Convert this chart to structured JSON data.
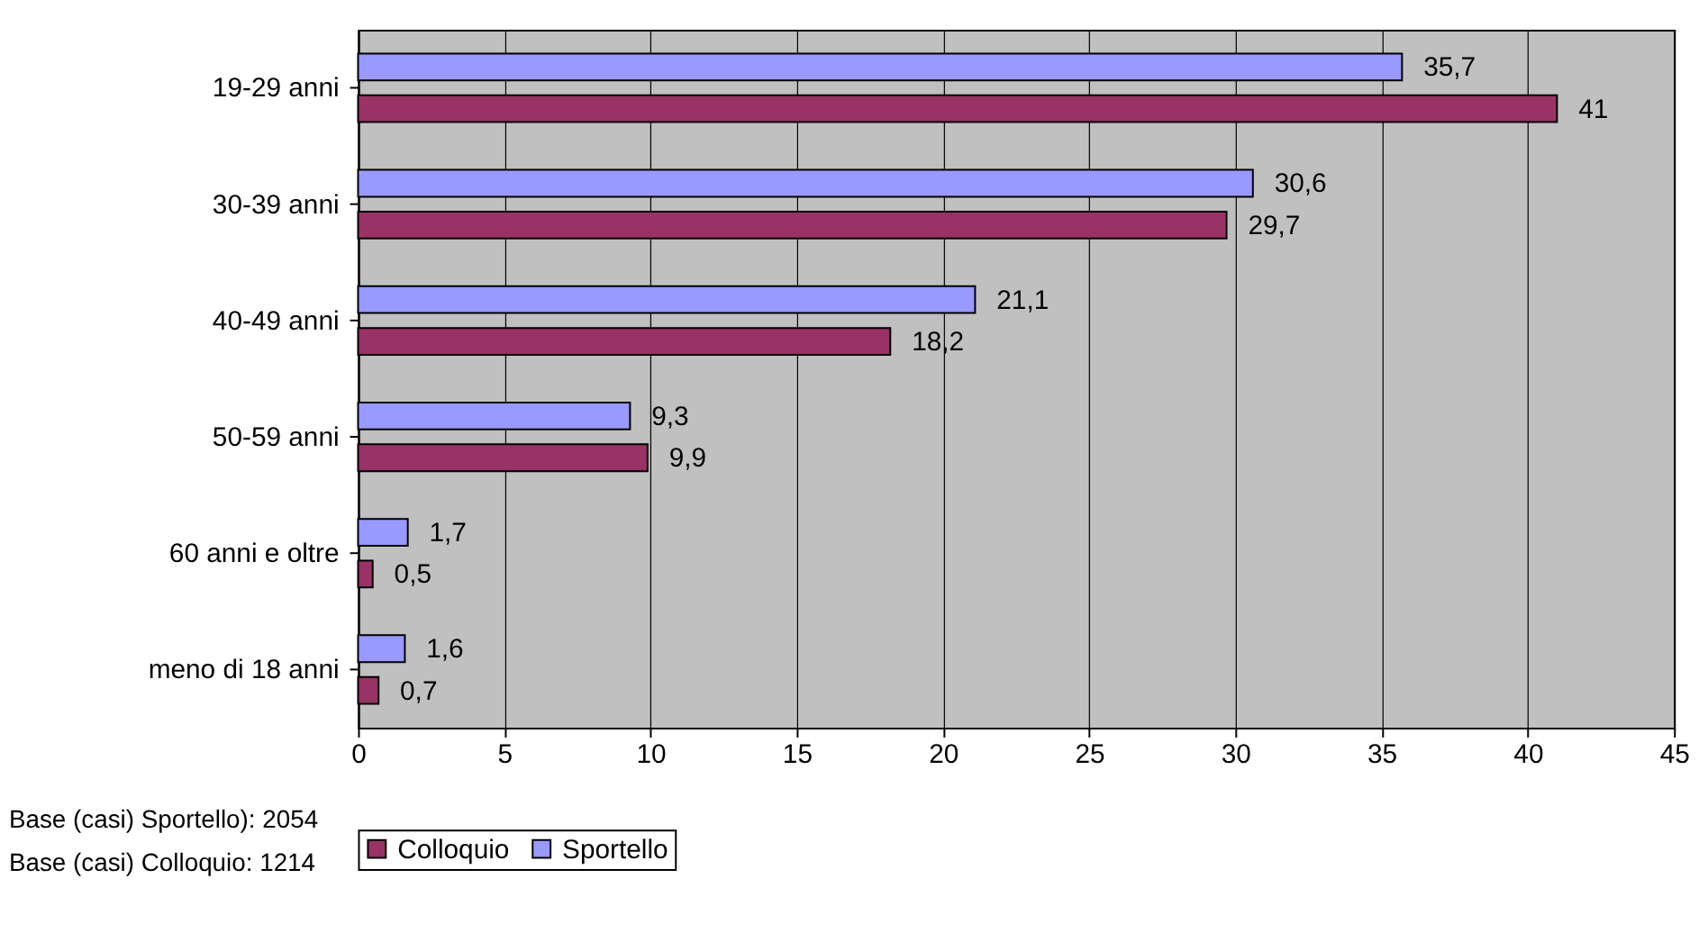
{
  "chart_data": {
    "type": "bar",
    "orientation": "horizontal",
    "categories": [
      "19-29 anni",
      "30-39 anni",
      "40-49 anni",
      "50-59 anni",
      "60 anni e oltre",
      "meno di 18 anni"
    ],
    "series": [
      {
        "name": "Colloquio",
        "color": "#993366",
        "values": [
          41,
          29.7,
          18.2,
          9.9,
          0.5,
          0.7
        ],
        "value_labels": [
          "41",
          "29,7",
          "18,2",
          "9,9",
          "0,5",
          "0,7"
        ]
      },
      {
        "name": "Sportello",
        "color": "#9999ff",
        "values": [
          35.7,
          30.6,
          21.1,
          9.3,
          1.7,
          1.6
        ],
        "value_labels": [
          "35,7",
          "30,6",
          "21,1",
          "9,3",
          "1,7",
          "1,6"
        ]
      }
    ],
    "xlim": [
      0,
      45
    ],
    "xticks": [
      0,
      5,
      10,
      15,
      20,
      25,
      30,
      35,
      40,
      45
    ],
    "grid": "x",
    "legend": "bottom",
    "annotations": [
      "Base (casi) Sportello): 2054",
      "Base (casi) Colloquio: 1214"
    ]
  }
}
